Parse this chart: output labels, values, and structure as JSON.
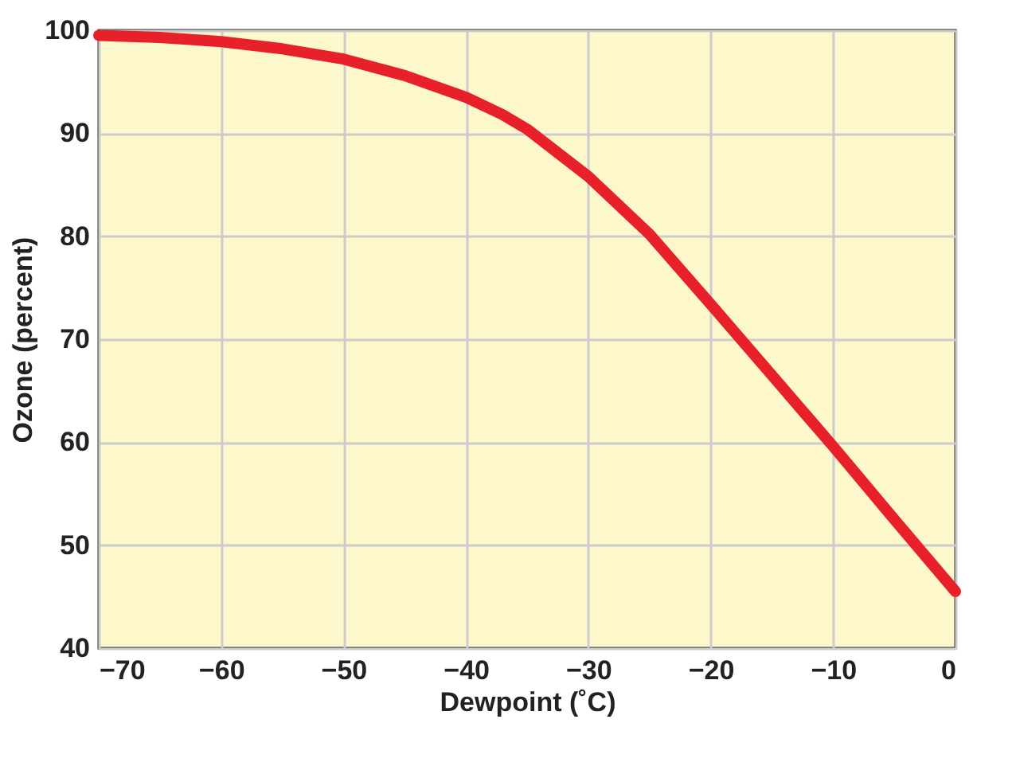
{
  "chart_data": {
    "type": "line",
    "xlabel": "Dewpoint (˚C)",
    "ylabel": "Ozone (percent)",
    "series": [
      {
        "color": "#e8202a",
        "x": [
          -70,
          -65,
          -60,
          -55,
          -50,
          -45,
          -40,
          -37,
          -35,
          -30,
          -25,
          -20,
          -15,
          -10,
          -5,
          0
        ],
        "values": [
          99.5,
          99.3,
          98.9,
          98.2,
          97.2,
          95.6,
          93.5,
          91.8,
          90.4,
          85.8,
          80.2,
          73.4,
          66.5,
          59.6,
          52.5,
          45.5
        ]
      }
    ],
    "xlim": [
      -70,
      0
    ],
    "xticks": [
      -70,
      -60,
      -50,
      -40,
      -30,
      -20,
      -10,
      0
    ],
    "ylim": [
      40,
      100
    ],
    "yticks": [
      40,
      50,
      60,
      70,
      80,
      90,
      100
    ],
    "grid": true,
    "line_style": "solid"
  }
}
